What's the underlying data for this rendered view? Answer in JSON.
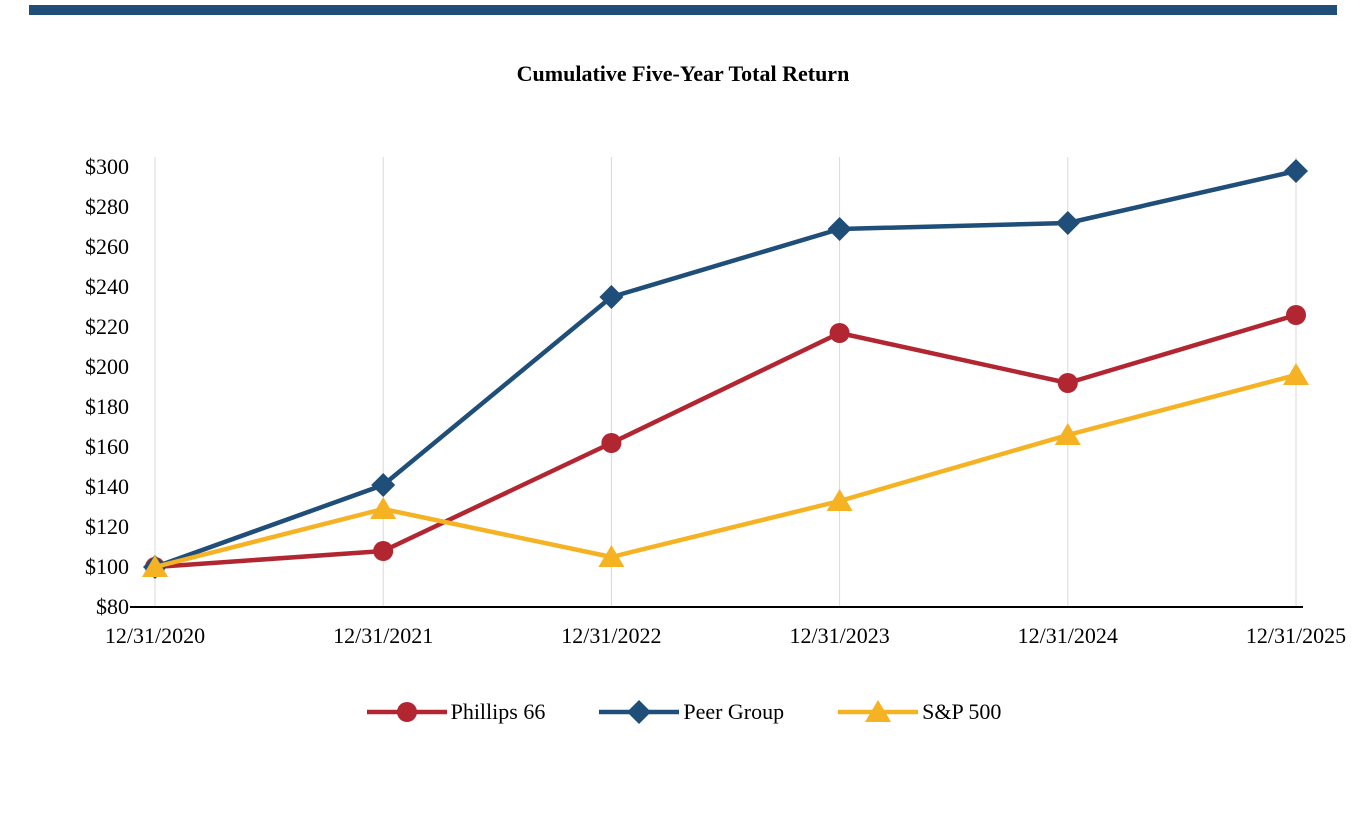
{
  "page": {
    "top_bar_color": "#1F4E79",
    "background_color": "#FFFFFF"
  },
  "chart_data": {
    "type": "line",
    "title": "Cumulative Five-Year Total Return",
    "x_labels": [
      "12/31/2020",
      "12/31/2021",
      "12/31/2022",
      "12/31/2023",
      "12/31/2024",
      "12/31/2025"
    ],
    "y_ticks": [
      300,
      280,
      260,
      240,
      220,
      200,
      180,
      160,
      140,
      120,
      100,
      80
    ],
    "y_tick_prefix": "$",
    "ylim": [
      80,
      300
    ],
    "grid": "vertical-only",
    "legend_position": "bottom",
    "colors": {
      "grid": "#D9D9D9",
      "axis": "#000000"
    },
    "series": [
      {
        "name": "Phillips 66",
        "marker": "circle",
        "color": "#B22632",
        "values": [
          100,
          108,
          162,
          217,
          192,
          226
        ]
      },
      {
        "name": "Peer Group",
        "marker": "diamond",
        "color": "#1F4E79",
        "values": [
          100,
          141,
          235,
          269,
          272,
          298
        ]
      },
      {
        "name": "S&P 500",
        "marker": "triangle",
        "color": "#F5B223",
        "values": [
          100,
          129,
          105,
          133,
          166,
          196
        ]
      }
    ]
  }
}
